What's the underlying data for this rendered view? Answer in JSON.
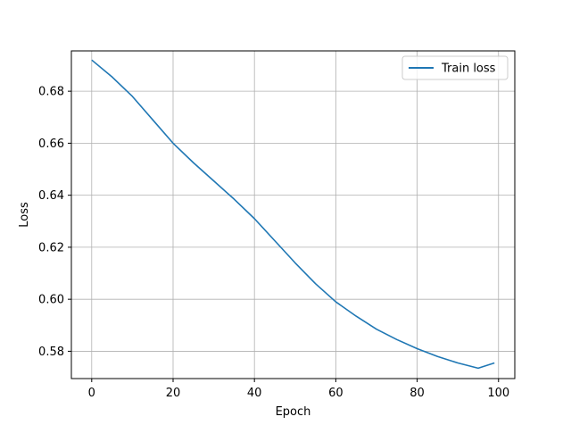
{
  "chart_data": {
    "type": "line",
    "title": "",
    "xlabel": "Epoch",
    "ylabel": "Loss",
    "xlim": [
      -5,
      104
    ],
    "ylim": [
      0.5695,
      0.6955
    ],
    "x_ticks": [
      0,
      20,
      40,
      60,
      80,
      100
    ],
    "x_tick_labels": [
      "0",
      "20",
      "40",
      "60",
      "80",
      "100"
    ],
    "y_ticks": [
      0.58,
      0.6,
      0.62,
      0.64,
      0.66,
      0.68
    ],
    "y_tick_labels": [
      "0.58",
      "0.60",
      "0.62",
      "0.64",
      "0.66",
      "0.68"
    ],
    "grid": true,
    "legend_position": "top-right",
    "series": [
      {
        "name": "Train loss",
        "color": "#1f77b4",
        "x": [
          0,
          5,
          10,
          15,
          20,
          25,
          30,
          35,
          40,
          45,
          50,
          55,
          60,
          65,
          70,
          75,
          80,
          85,
          90,
          95,
          99
        ],
        "y": [
          0.692,
          0.6855,
          0.678,
          0.669,
          0.66,
          0.6525,
          0.6455,
          0.6385,
          0.631,
          0.6225,
          0.614,
          0.606,
          0.599,
          0.5935,
          0.5885,
          0.5845,
          0.581,
          0.578,
          0.5755,
          0.5735,
          0.5755
        ]
      }
    ]
  }
}
